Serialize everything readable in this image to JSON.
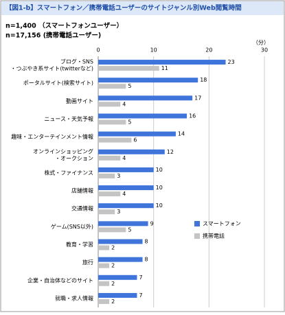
{
  "chart_data": {
    "type": "bar",
    "orientation": "horizontal",
    "title": "【図1-b】スマートフォン／携帯電話ユーザーのサイトジャンル別Web閲覧時間",
    "subtitles": [
      "n=1,400 （スマートフォンユーザー）",
      "n=17,156 (携帯電話ユーザー)"
    ],
    "unit": "（分）",
    "categories": [
      [
        "ブログ・SNS",
        "・つぶやき系サイト(twitterなど)"
      ],
      [
        "ポータルサイト(検索サイト)"
      ],
      [
        "動画サイト"
      ],
      [
        "ニュース・天気予報"
      ],
      [
        "趣味・エンターテインメント情報"
      ],
      [
        "オンラインショッピング",
        "・オークション"
      ],
      [
        "株式・ファイナンス"
      ],
      [
        "店舗情報"
      ],
      [
        "交通情報"
      ],
      [
        "ゲーム(SNS以外)"
      ],
      [
        "教育・学習"
      ],
      [
        "旅行"
      ],
      [
        "企業・自治体などのサイト"
      ],
      [
        "就職・求人情報"
      ]
    ],
    "series": [
      {
        "name": "スマートフォン",
        "color": "#3f74db",
        "values": [
          23,
          18,
          17,
          16,
          14,
          12,
          10,
          10,
          10,
          9,
          8,
          8,
          7,
          7
        ]
      },
      {
        "name": "携帯電話",
        "color": "#c4c4c4",
        "values": [
          11,
          5,
          4,
          5,
          6,
          4,
          3,
          4,
          3,
          5,
          2,
          2,
          2,
          2
        ]
      }
    ],
    "xlim": [
      0,
      30
    ],
    "xticks": [
      0,
      10,
      20,
      30
    ],
    "grid": true,
    "legend": "right"
  }
}
